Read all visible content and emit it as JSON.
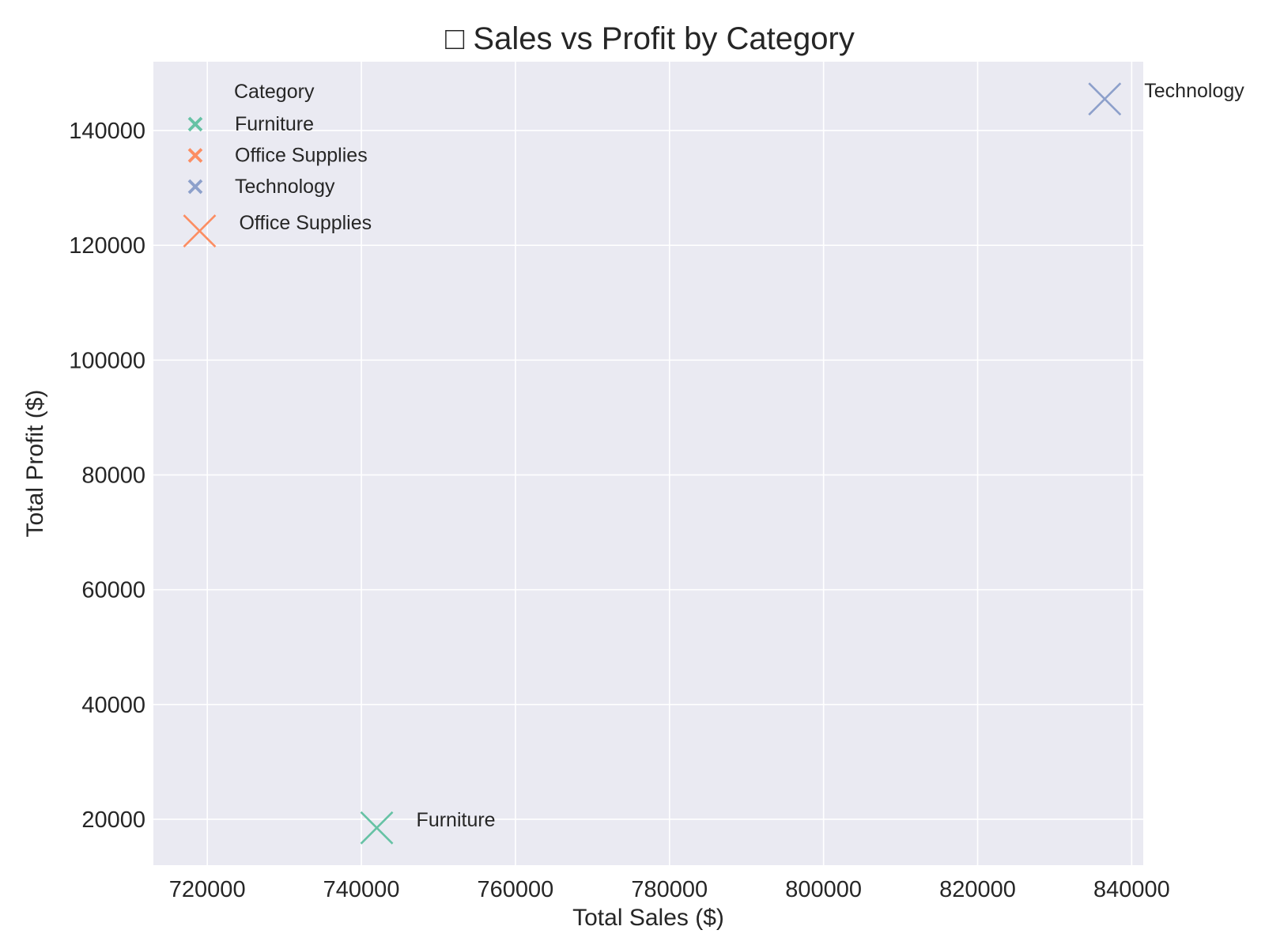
{
  "chart_data": {
    "type": "scatter",
    "title": "□ Sales vs Profit by Category",
    "xlabel": "Total Sales ($)",
    "ylabel": "Total Profit ($)",
    "xlim": [
      713000,
      841500
    ],
    "ylim": [
      12000,
      152000
    ],
    "xticks": [
      720000,
      740000,
      760000,
      780000,
      800000,
      820000,
      840000
    ],
    "xtick_labels": [
      "720000",
      "740000",
      "760000",
      "780000",
      "800000",
      "820000",
      "840000"
    ],
    "yticks": [
      20000,
      40000,
      60000,
      80000,
      100000,
      120000,
      140000
    ],
    "ytick_labels": [
      "20000",
      "40000",
      "60000",
      "80000",
      "100000",
      "120000",
      "140000"
    ],
    "grid": true,
    "marker": "x",
    "background_color": "#EAEAF2",
    "grid_color": "#FFFFFF",
    "series": [
      {
        "name": "Furniture",
        "x": 742000,
        "y": 18500,
        "color": "#66C2A5",
        "label": "Furniture"
      },
      {
        "name": "Office Supplies",
        "x": 719000,
        "y": 122500,
        "color": "#FC8D62",
        "label": "Office Supplies"
      },
      {
        "name": "Technology",
        "x": 836500,
        "y": 145500,
        "color": "#8DA0CB",
        "label": "Technology"
      }
    ],
    "legend": {
      "title": "Category",
      "placement": "top-left",
      "entries": [
        "Furniture",
        "Office Supplies",
        "Technology"
      ]
    }
  }
}
